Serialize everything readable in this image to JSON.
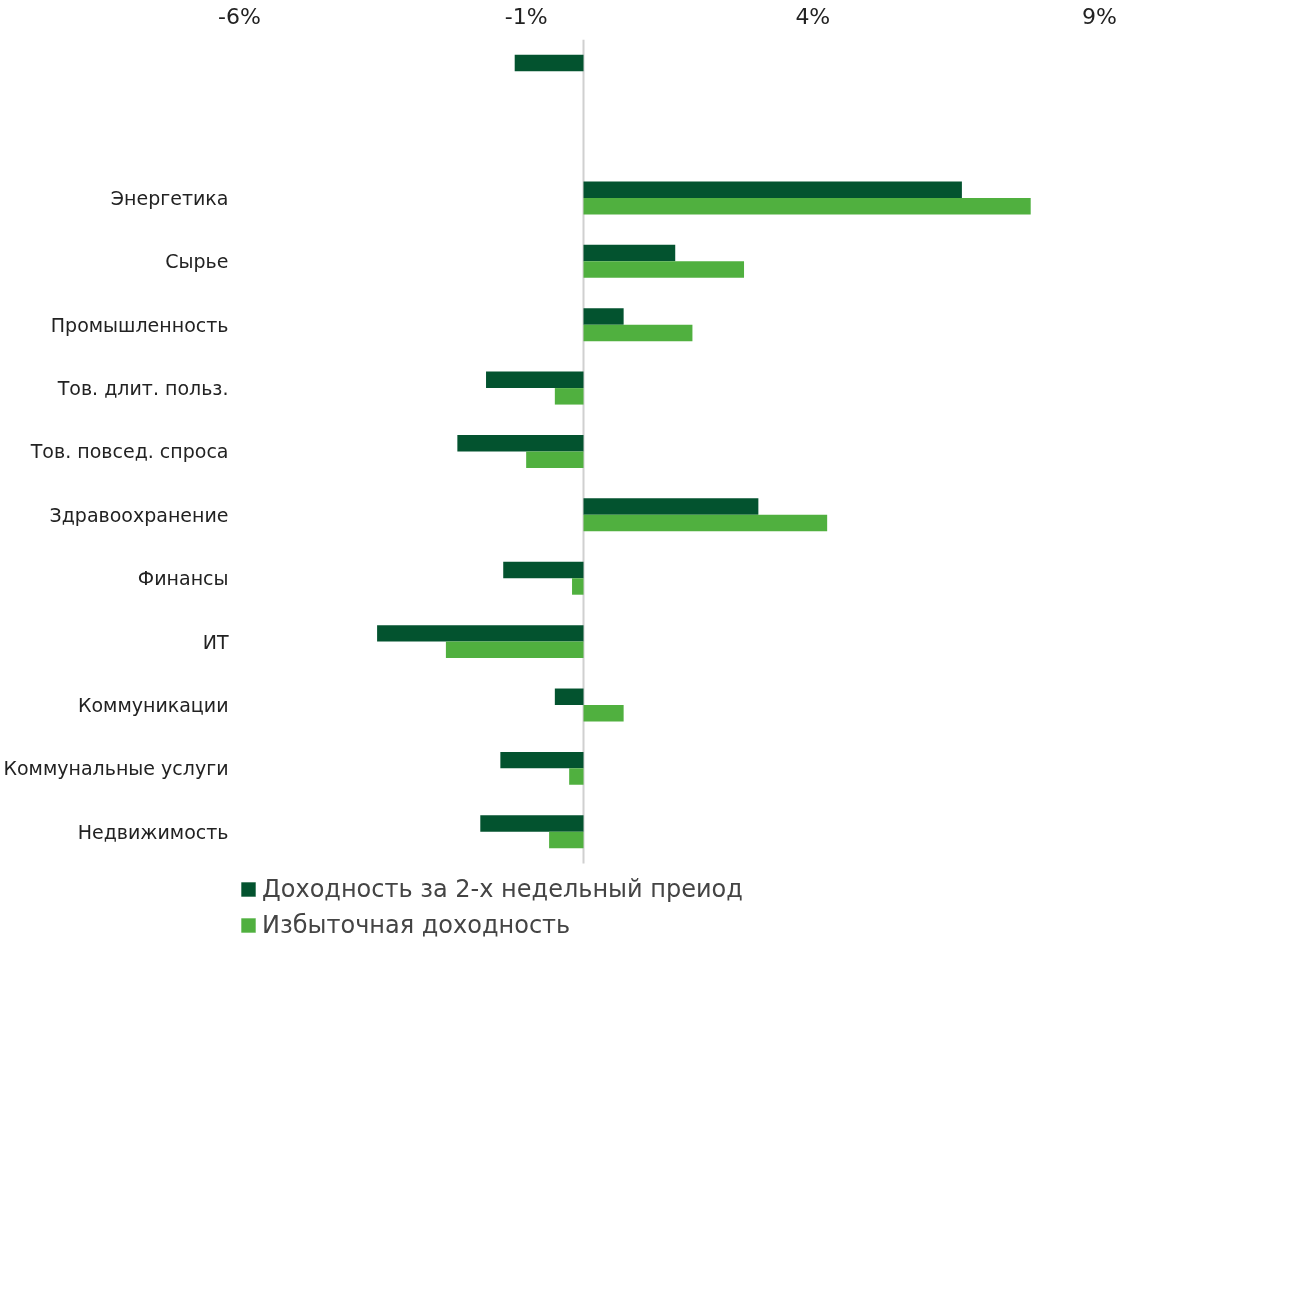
{
  "chart_data": {
    "type": "bar",
    "orientation": "horizontal",
    "categories": [
      null,
      null,
      "Энергетика",
      "Сырье",
      "Промышленность",
      "Тов. длит. польз.",
      "Тов. повсед. спроса",
      "Здравоохранение",
      "Финансы",
      "ИТ",
      "Коммуникации",
      "Коммунальные услуги",
      "Недвижимость"
    ],
    "series": [
      {
        "name": "Доходность за 2-х недельный преиод",
        "color": "#03532f",
        "values": [
          -1.2,
          null,
          6.6,
          1.6,
          0.7,
          -1.7,
          -2.2,
          3.05,
          -1.4,
          -3.6,
          -0.5,
          -1.45,
          -1.8
        ]
      },
      {
        "name": "Избыточная доходность",
        "color": "#50b03f",
        "values": [
          null,
          null,
          7.8,
          2.8,
          1.9,
          -0.5,
          -1.0,
          4.25,
          -0.2,
          -2.4,
          0.7,
          -0.25,
          -0.6
        ]
      }
    ],
    "xlim": [
      -6,
      9
    ],
    "xticks": [
      {
        "value": -6,
        "label": "-6%"
      },
      {
        "value": -1,
        "label": "-1%"
      },
      {
        "value": 4,
        "label": "4%"
      },
      {
        "value": 9,
        "label": "9%"
      }
    ],
    "grid": false,
    "legend": "bottom"
  }
}
